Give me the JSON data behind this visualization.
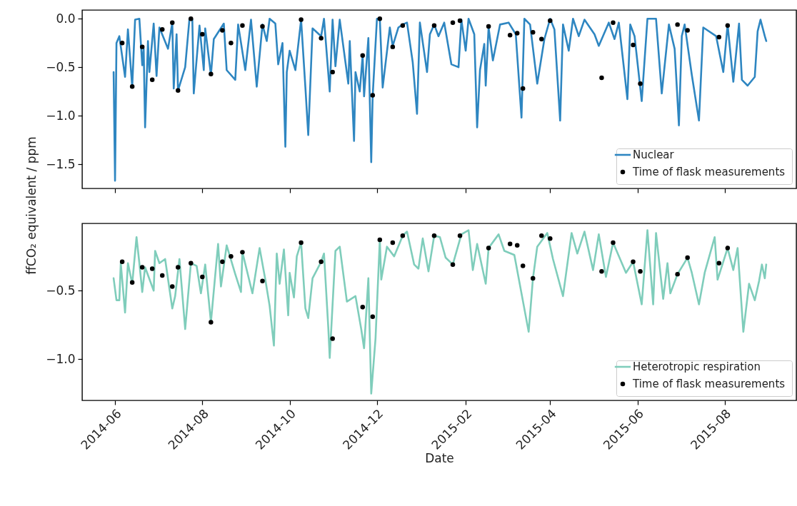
{
  "chart_data": [
    {
      "type": "line",
      "ylabel": "ffCO₂ equivalent / ppm",
      "xlim": [
        "2014-05-09",
        "2015-09-20"
      ],
      "xticks": [
        "2014-06",
        "2014-08",
        "2014-10",
        "2014-12",
        "2015-02",
        "2015-04",
        "2015-06",
        "2015-08"
      ],
      "ylim": [
        -1.75,
        0.09
      ],
      "yticks": [
        {
          "value": -1.5,
          "label": "−1.5"
        },
        {
          "value": -1.0,
          "label": "−1.0"
        },
        {
          "value": -0.5,
          "label": "−0.5"
        },
        {
          "value": 0.0,
          "label": "0.0"
        }
      ],
      "tick_labels": "y",
      "legend": "bottom right",
      "series": [
        {
          "name": "Nuclear",
          "type": "line",
          "color": "#2e86c1",
          "x": [
            "2014-05-31",
            "2014-06-01",
            "2014-06-02",
            "2014-06-04",
            "2014-06-08",
            "2014-06-10",
            "2014-06-13",
            "2014-06-15",
            "2014-06-18",
            "2014-06-20",
            "2014-06-21",
            "2014-06-22",
            "2014-06-24",
            "2014-06-25",
            "2014-06-28",
            "2014-06-30",
            "2014-07-02",
            "2014-07-08",
            "2014-07-11",
            "2014-07-12",
            "2014-07-14",
            "2014-07-15",
            "2014-07-20",
            "2014-07-23",
            "2014-07-25",
            "2014-07-26",
            "2014-07-30",
            "2014-08-02",
            "2014-08-03",
            "2014-08-07",
            "2014-08-09",
            "2014-08-16",
            "2014-08-18",
            "2014-08-24",
            "2014-08-26",
            "2014-08-31",
            "2014-09-04",
            "2014-09-08",
            "2014-09-12",
            "2014-09-15",
            "2014-09-17",
            "2014-09-21",
            "2014-09-23",
            "2014-09-26",
            "2014-09-28",
            "2014-09-29",
            "2014-10-01",
            "2014-10-05",
            "2014-10-09",
            "2014-10-12",
            "2014-10-14",
            "2014-10-17",
            "2014-10-23",
            "2014-10-25",
            "2014-10-29",
            "2014-10-31",
            "2014-11-02",
            "2014-11-05",
            "2014-11-11",
            "2014-11-12",
            "2014-11-15",
            "2014-11-16",
            "2014-11-19",
            "2014-11-21",
            "2014-11-22",
            "2014-11-25",
            "2014-11-27",
            "2014-11-28",
            "2014-12-01",
            "2014-12-03",
            "2014-12-05",
            "2014-12-10",
            "2014-12-12",
            "2014-12-16",
            "2014-12-19",
            "2014-12-22",
            "2014-12-26",
            "2014-12-29",
            "2014-12-31",
            "2015-01-05",
            "2015-01-07",
            "2015-01-10",
            "2015-01-13",
            "2015-01-17",
            "2015-01-22",
            "2015-01-27",
            "2015-01-29",
            "2015-02-01",
            "2015-02-03",
            "2015-02-07",
            "2015-02-09",
            "2015-02-11",
            "2015-02-14",
            "2015-02-15",
            "2015-02-17",
            "2015-02-20",
            "2015-02-25",
            "2015-03-03",
            "2015-03-08",
            "2015-03-12",
            "2015-03-14",
            "2015-03-18",
            "2015-03-23",
            "2015-03-28",
            "2015-04-01",
            "2015-04-04",
            "2015-04-08",
            "2015-04-10",
            "2015-04-14",
            "2015-04-17",
            "2015-04-21",
            "2015-04-25",
            "2015-05-02",
            "2015-05-05",
            "2015-05-12",
            "2015-05-16",
            "2015-05-19",
            "2015-05-25",
            "2015-05-27",
            "2015-05-30",
            "2015-06-04",
            "2015-06-08",
            "2015-06-14",
            "2015-06-18",
            "2015-06-23",
            "2015-06-27",
            "2015-06-30",
            "2015-07-02",
            "2015-07-04",
            "2015-07-09",
            "2015-07-14",
            "2015-07-17",
            "2015-07-26",
            "2015-07-31",
            "2015-08-03",
            "2015-08-07",
            "2015-08-11",
            "2015-08-13",
            "2015-08-17",
            "2015-08-22",
            "2015-08-24",
            "2015-08-26",
            "2015-08-29",
            "2015-08-30"
          ],
          "values": [
            -0.55,
            -1.67,
            -0.25,
            -0.18,
            -0.6,
            -0.11,
            -0.7,
            -0.01,
            0.0,
            -0.48,
            -0.31,
            -1.12,
            -0.23,
            -0.55,
            -0.05,
            -0.59,
            -0.09,
            -0.31,
            -0.04,
            -0.72,
            -0.16,
            -0.74,
            -0.5,
            0.0,
            -0.01,
            -0.77,
            -0.07,
            -0.53,
            -0.1,
            -0.58,
            -0.21,
            -0.05,
            -0.53,
            -0.63,
            -0.06,
            -0.53,
            -0.01,
            -0.7,
            -0.06,
            -0.23,
            0.0,
            -0.05,
            -0.47,
            -0.25,
            -1.32,
            -0.55,
            -0.33,
            -0.53,
            -0.01,
            -0.71,
            -1.2,
            -0.1,
            -0.18,
            0.0,
            -0.75,
            -0.01,
            -0.49,
            -0.01,
            -0.67,
            -0.23,
            -1.26,
            -0.55,
            -0.75,
            -0.38,
            -0.8,
            -0.2,
            -1.48,
            -0.8,
            0.0,
            0.0,
            -0.71,
            -0.09,
            -0.28,
            -0.09,
            -0.06,
            -0.04,
            -0.45,
            -0.98,
            -0.04,
            -0.55,
            -0.16,
            -0.06,
            -0.18,
            -0.04,
            -0.47,
            -0.5,
            -0.01,
            -0.33,
            0.0,
            -0.16,
            -1.12,
            -0.53,
            -0.26,
            -0.69,
            -0.09,
            -0.43,
            -0.06,
            -0.04,
            -0.16,
            -1.02,
            0.0,
            -0.06,
            -0.67,
            -0.21,
            0.0,
            -0.11,
            -1.05,
            -0.06,
            -0.33,
            0.0,
            -0.18,
            -0.01,
            -0.16,
            -0.28,
            -0.04,
            -0.21,
            -0.04,
            -0.83,
            -0.06,
            -0.18,
            -0.85,
            0.0,
            0.0,
            -0.77,
            -0.06,
            -0.31,
            -1.1,
            -0.18,
            -0.06,
            -0.58,
            -1.05,
            -0.09,
            -0.18,
            -0.55,
            -0.06,
            -0.65,
            -0.05,
            -0.63,
            -0.69,
            -0.6,
            -0.13,
            -0.01,
            -0.18,
            -0.23
          ]
        },
        {
          "name": "Time of flask measurements",
          "type": "scatter",
          "marker": "circle",
          "color": "#000000",
          "x": [
            "2014-06-06",
            "2014-06-13",
            "2014-06-20",
            "2014-06-27",
            "2014-07-04",
            "2014-07-11",
            "2014-07-15",
            "2014-07-24",
            "2014-08-01",
            "2014-08-07",
            "2014-08-15",
            "2014-08-21",
            "2014-08-29",
            "2014-09-12",
            "2014-10-09",
            "2014-10-23",
            "2014-10-31",
            "2014-11-21",
            "2014-11-28",
            "2014-12-03",
            "2014-12-12",
            "2014-12-19",
            "2015-01-10",
            "2015-01-23",
            "2015-01-28",
            "2015-02-17",
            "2015-03-04",
            "2015-03-09",
            "2015-03-13",
            "2015-03-20",
            "2015-03-26",
            "2015-04-01",
            "2015-05-07",
            "2015-05-15",
            "2015-05-29",
            "2015-06-03",
            "2015-06-29",
            "2015-07-06",
            "2015-07-28",
            "2015-08-03"
          ],
          "values": [
            -0.25,
            -0.7,
            -0.29,
            -0.63,
            -0.11,
            -0.04,
            -0.74,
            0.0,
            -0.16,
            -0.57,
            -0.12,
            -0.25,
            -0.07,
            -0.08,
            -0.01,
            -0.2,
            -0.55,
            -0.38,
            -0.79,
            0.0,
            -0.29,
            -0.07,
            -0.07,
            -0.04,
            -0.02,
            -0.08,
            -0.17,
            -0.15,
            -0.72,
            -0.14,
            -0.21,
            -0.02,
            -0.61,
            -0.04,
            -0.27,
            -0.67,
            -0.06,
            -0.12,
            -0.19,
            -0.07
          ]
        }
      ]
    },
    {
      "type": "line",
      "xlabel": "Date",
      "xlim": [
        "2014-05-09",
        "2015-09-20"
      ],
      "xticks": [
        "2014-06",
        "2014-08",
        "2014-10",
        "2014-12",
        "2015-02",
        "2015-04",
        "2015-06",
        "2015-08"
      ],
      "ylim": [
        -1.3,
        -0.01
      ],
      "yticks": [
        {
          "value": -1.0,
          "label": "−1.0"
        },
        {
          "value": -0.5,
          "label": "−0.5"
        }
      ],
      "legend": "bottom right",
      "series": [
        {
          "name": "Heterotropic respiration",
          "type": "line",
          "color": "#7fcdbb",
          "x": [
            "2014-05-31",
            "2014-06-02",
            "2014-06-04",
            "2014-06-05",
            "2014-06-08",
            "2014-06-10",
            "2014-06-13",
            "2014-06-16",
            "2014-06-18",
            "2014-06-20",
            "2014-06-22",
            "2014-06-28",
            "2014-06-29",
            "2014-07-02",
            "2014-07-06",
            "2014-07-11",
            "2014-07-13",
            "2014-07-16",
            "2014-07-20",
            "2014-07-24",
            "2014-07-28",
            "2014-07-31",
            "2014-08-03",
            "2014-08-07",
            "2014-08-12",
            "2014-08-14",
            "2014-08-18",
            "2014-08-24",
            "2014-08-28",
            "2014-08-29",
            "2014-09-05",
            "2014-09-10",
            "2014-09-14",
            "2014-09-17",
            "2014-09-20",
            "2014-09-22",
            "2014-09-24",
            "2014-09-27",
            "2014-09-30",
            "2014-10-01",
            "2014-10-04",
            "2014-10-06",
            "2014-10-09",
            "2014-10-12",
            "2014-10-14",
            "2014-10-17",
            "2014-10-23",
            "2014-10-25",
            "2014-10-28",
            "2014-10-29",
            "2014-11-02",
            "2014-11-05",
            "2014-11-10",
            "2014-11-16",
            "2014-11-20",
            "2014-11-22",
            "2014-11-25",
            "2014-11-27",
            "2014-11-30",
            "2014-12-03",
            "2014-12-04",
            "2014-12-08",
            "2014-12-13",
            "2014-12-19",
            "2014-12-22",
            "2014-12-27",
            "2014-12-30",
            "2015-01-02",
            "2015-01-06",
            "2015-01-10",
            "2015-01-14",
            "2015-01-18",
            "2015-01-23",
            "2015-01-29",
            "2015-02-03",
            "2015-02-06",
            "2015-02-09",
            "2015-02-15",
            "2015-02-17",
            "2015-02-24",
            "2015-02-28",
            "2015-03-07",
            "2015-03-17",
            "2015-03-20",
            "2015-03-23",
            "2015-03-30",
            "2015-04-03",
            "2015-04-10",
            "2015-04-16",
            "2015-04-20",
            "2015-04-25",
            "2015-05-01",
            "2015-05-05",
            "2015-05-10",
            "2015-05-15",
            "2015-05-24",
            "2015-05-29",
            "2015-06-04",
            "2015-06-08",
            "2015-06-12",
            "2015-06-14",
            "2015-06-19",
            "2015-06-22",
            "2015-06-24",
            "2015-06-29",
            "2015-07-06",
            "2015-07-09",
            "2015-07-14",
            "2015-07-18",
            "2015-07-25",
            "2015-07-27",
            "2015-08-03",
            "2015-08-07",
            "2015-08-10",
            "2015-08-14",
            "2015-08-18",
            "2015-08-22",
            "2015-08-25",
            "2015-08-27",
            "2015-08-29",
            "2015-08-30"
          ],
          "values": [
            -0.41,
            -0.57,
            -0.57,
            -0.3,
            -0.66,
            -0.3,
            -0.45,
            -0.11,
            -0.3,
            -0.51,
            -0.33,
            -0.5,
            -0.21,
            -0.3,
            -0.27,
            -0.63,
            -0.54,
            -0.27,
            -0.78,
            -0.3,
            -0.32,
            -0.52,
            -0.31,
            -0.73,
            -0.16,
            -0.47,
            -0.17,
            -0.38,
            -0.51,
            -0.22,
            -0.52,
            -0.19,
            -0.42,
            -0.61,
            -0.9,
            -0.23,
            -0.45,
            -0.2,
            -0.68,
            -0.37,
            -0.55,
            -0.25,
            -0.15,
            -0.63,
            -0.7,
            -0.41,
            -0.29,
            -0.23,
            -0.77,
            -0.99,
            -0.21,
            -0.18,
            -0.58,
            -0.54,
            -0.78,
            -0.92,
            -0.41,
            -1.25,
            -0.85,
            -0.13,
            -0.42,
            -0.18,
            -0.25,
            -0.1,
            -0.07,
            -0.31,
            -0.34,
            -0.12,
            -0.36,
            -0.1,
            -0.11,
            -0.26,
            -0.31,
            -0.09,
            -0.06,
            -0.35,
            -0.16,
            -0.45,
            -0.19,
            -0.09,
            -0.21,
            -0.24,
            -0.8,
            -0.41,
            -0.18,
            -0.08,
            -0.27,
            -0.54,
            -0.08,
            -0.23,
            -0.07,
            -0.35,
            -0.09,
            -0.4,
            -0.15,
            -0.37,
            -0.29,
            -0.6,
            -0.06,
            -0.6,
            -0.08,
            -0.56,
            -0.3,
            -0.52,
            -0.38,
            -0.26,
            -0.37,
            -0.6,
            -0.37,
            -0.11,
            -0.42,
            -0.19,
            -0.35,
            -0.19,
            -0.8,
            -0.45,
            -0.57,
            -0.43,
            -0.31,
            -0.41,
            -0.31
          ]
        },
        {
          "name": "Time of flask measurements",
          "type": "scatter",
          "marker": "circle",
          "color": "#000000",
          "x": [
            "2014-06-06",
            "2014-06-13",
            "2014-06-20",
            "2014-06-27",
            "2014-07-04",
            "2014-07-11",
            "2014-07-15",
            "2014-07-24",
            "2014-08-01",
            "2014-08-07",
            "2014-08-15",
            "2014-08-21",
            "2014-08-29",
            "2014-09-12",
            "2014-10-09",
            "2014-10-23",
            "2014-10-31",
            "2014-11-21",
            "2014-11-28",
            "2014-12-03",
            "2014-12-12",
            "2014-12-19",
            "2015-01-10",
            "2015-01-23",
            "2015-01-28",
            "2015-02-17",
            "2015-03-04",
            "2015-03-09",
            "2015-03-13",
            "2015-03-20",
            "2015-03-26",
            "2015-04-01",
            "2015-05-07",
            "2015-05-15",
            "2015-05-29",
            "2015-06-03",
            "2015-06-29",
            "2015-07-06",
            "2015-07-28",
            "2015-08-03"
          ],
          "values": [
            -0.29,
            -0.44,
            -0.33,
            -0.34,
            -0.39,
            -0.47,
            -0.33,
            -0.3,
            -0.4,
            -0.73,
            -0.29,
            -0.25,
            -0.22,
            -0.43,
            -0.15,
            -0.29,
            -0.85,
            -0.62,
            -0.69,
            -0.13,
            -0.15,
            -0.1,
            -0.1,
            -0.31,
            -0.1,
            -0.19,
            -0.16,
            -0.17,
            -0.32,
            -0.41,
            -0.1,
            -0.12,
            -0.36,
            -0.15,
            -0.29,
            -0.36,
            -0.38,
            -0.26,
            -0.3,
            -0.19
          ]
        }
      ]
    }
  ]
}
